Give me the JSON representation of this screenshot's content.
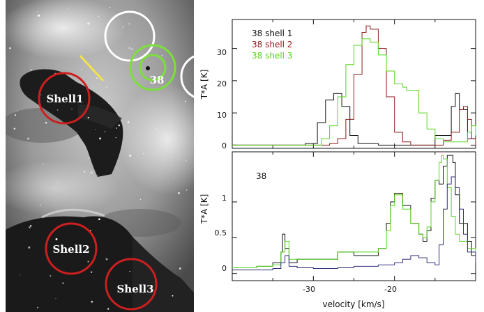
{
  "image_panel": {
    "regions": [
      {
        "label": "Shell1",
        "color": "#cc1f1f"
      },
      {
        "label": "Shell2",
        "color": "#cc1f1f"
      },
      {
        "label": "Shell3",
        "color": "#cc1f1f"
      },
      {
        "label": "38",
        "color": "#7be03a"
      }
    ]
  },
  "chart_data": [
    {
      "type": "line",
      "title": "",
      "xlabel": "",
      "ylabel": "T*A [K]",
      "xlim": [
        -40,
        -10
      ],
      "ylim": [
        -1,
        39
      ],
      "x_ticks": [
        -30,
        -20
      ],
      "y_ticks": [
        0,
        10,
        20,
        30
      ],
      "legend_position": "top-left",
      "series": [
        {
          "name": "38 shell 1",
          "color": "#111111",
          "x": [
            -40,
            -31,
            -29.5,
            -28.5,
            -27.5,
            -26.5,
            -25.5,
            -24.5,
            -22,
            -18,
            -15,
            -13,
            -12.5,
            -12,
            -11,
            -10
          ],
          "y": [
            0,
            0.5,
            7,
            14,
            16,
            12,
            3,
            0.5,
            0,
            0,
            3,
            12,
            16,
            11,
            2,
            0
          ]
        },
        {
          "name": "38 shell 2",
          "color": "#8b1a1a",
          "x": [
            -40,
            -31,
            -28,
            -27,
            -26,
            -25,
            -24,
            -23.5,
            -23,
            -22,
            -21,
            -20,
            -19,
            -18,
            -16,
            -14,
            -13,
            -12,
            -11.5,
            -11,
            -10.5,
            -10
          ],
          "y": [
            0,
            0,
            0.5,
            2,
            8,
            22,
            35,
            37,
            36,
            30,
            15,
            4,
            1,
            0,
            0,
            1.5,
            4,
            11,
            12,
            8,
            2,
            0
          ]
        },
        {
          "name": "38 shell 3",
          "color": "#55d61d",
          "x": [
            -40,
            -30,
            -29,
            -28,
            -27,
            -26,
            -25,
            -24,
            -23.5,
            -23,
            -22,
            -21,
            -20,
            -19,
            -18.5,
            -17,
            -16,
            -15,
            -14,
            -13,
            -12,
            -11,
            -10.5,
            -10
          ],
          "y": [
            0,
            0,
            2,
            6,
            15,
            25,
            31,
            33,
            33,
            32,
            28,
            23,
            19,
            18,
            17,
            10,
            5,
            2,
            1,
            1,
            1,
            4,
            6,
            3
          ]
        }
      ]
    },
    {
      "type": "line",
      "title": "38",
      "xlabel": "velocity [km/s]",
      "ylabel": "T*A [K]",
      "xlim": [
        -40,
        -10
      ],
      "ylim": [
        -0.1,
        1.7
      ],
      "x_ticks": [
        -30,
        -20
      ],
      "y_ticks": [
        0,
        0.5,
        1
      ],
      "legend_position": "none",
      "series": [
        {
          "name": "",
          "color": "#111111",
          "x": [
            -40,
            -37,
            -35,
            -34,
            -33.8,
            -33.5,
            -33,
            -32,
            -30,
            -27,
            -25,
            -22,
            -21,
            -20.5,
            -20,
            -19,
            -18,
            -17,
            -16.5,
            -16,
            -15.5,
            -15,
            -14.5,
            -14,
            -13.5,
            -13,
            -12.8,
            -12.5,
            -12,
            -11,
            -10.5,
            -10
          ],
          "y": [
            0.08,
            0.1,
            0.15,
            0.3,
            0.55,
            0.35,
            0.15,
            0.2,
            0.2,
            0.3,
            0.25,
            0.35,
            0.7,
            1.0,
            1.12,
            0.95,
            0.7,
            0.55,
            0.45,
            0.6,
            1.05,
            1.3,
            1.25,
            1.5,
            1.65,
            1.65,
            1.55,
            1.1,
            0.7,
            0.45,
            0.25,
            0.2
          ]
        },
        {
          "name": "",
          "color": "#55d61d",
          "x": [
            -40,
            -37,
            -35,
            -34,
            -33.5,
            -33,
            -32,
            -30,
            -27,
            -25,
            -22,
            -21,
            -20.5,
            -20,
            -19,
            -18,
            -17,
            -16.5,
            -16,
            -15.5,
            -15,
            -14.5,
            -14.2,
            -14,
            -13.5,
            -13,
            -12.5,
            -12,
            -11,
            -10
          ],
          "y": [
            0.08,
            0.1,
            0.12,
            0.3,
            0.45,
            0.2,
            0.2,
            0.2,
            0.3,
            0.3,
            0.35,
            0.6,
            0.95,
            1.1,
            0.9,
            0.7,
            0.55,
            0.5,
            0.65,
            1.0,
            1.3,
            1.55,
            1.65,
            1.6,
            1.2,
            0.8,
            0.55,
            0.45,
            0.35,
            0.3
          ]
        },
        {
          "name": "",
          "color": "#2e2e7a",
          "x": [
            -40,
            -35,
            -34,
            -33.5,
            -33,
            -32,
            -30,
            -27,
            -25,
            -22,
            -20,
            -19,
            -18,
            -17,
            -16,
            -15,
            -14.5,
            -14,
            -13.5,
            -13,
            -12.5,
            -12,
            -11.5,
            -11,
            -10
          ],
          "y": [
            0.05,
            0.07,
            0.15,
            0.25,
            0.1,
            0.08,
            0.07,
            0.08,
            0.1,
            0.12,
            0.15,
            0.2,
            0.25,
            0.22,
            0.15,
            0.12,
            0.4,
            0.9,
            1.25,
            1.35,
            1.2,
            0.9,
            0.55,
            0.3,
            0.15
          ]
        }
      ]
    }
  ]
}
